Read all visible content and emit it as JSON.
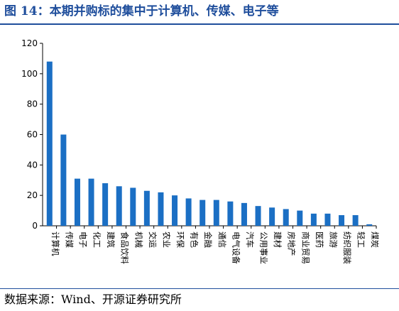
{
  "figure": {
    "title": "图 14：本期并购标的集中于计算机、传媒、电子等",
    "source": "数据来源：Wind、开源证券研究所"
  },
  "colors": {
    "bar": "#1b6fc4",
    "accent": "#1f4e9c",
    "axis": "#000000"
  },
  "chart_data": {
    "type": "bar",
    "title": "",
    "xlabel": "",
    "ylabel": "",
    "ylim": [
      0,
      120
    ],
    "yticks": [
      0,
      20,
      40,
      60,
      80,
      100,
      120
    ],
    "grid": false,
    "categories": [
      "计算机",
      "传媒",
      "电子",
      "化工",
      "建筑",
      "食品饮料",
      "机械",
      "交运",
      "农业",
      "环保",
      "有色",
      "金融",
      "通信",
      "电气设备",
      "汽车",
      "公用事业",
      "建材",
      "房地产",
      "商业贸易",
      "医药",
      "旅游",
      "纺织服装",
      "轻工",
      "煤炭"
    ],
    "values": [
      108,
      60,
      31,
      31,
      28,
      26,
      25,
      23,
      22,
      20,
      18,
      17,
      17,
      16,
      15,
      13,
      12,
      11,
      10,
      8,
      8,
      7,
      7,
      1
    ]
  }
}
